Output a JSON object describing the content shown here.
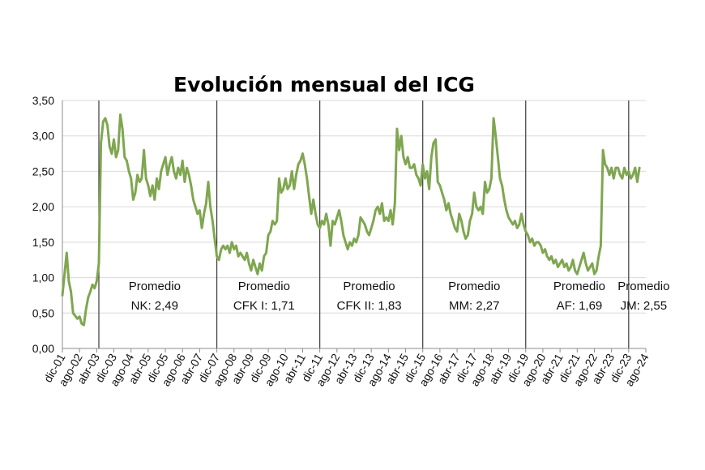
{
  "chart_data": {
    "type": "line",
    "title": "Evolución mensual del ICG",
    "xlabel": "",
    "ylabel": "",
    "ylim": [
      0,
      3.5
    ],
    "grid": "horizontal",
    "legend": "none",
    "y_ticks": [
      "0,00",
      "0,50",
      "1,00",
      "1,50",
      "2,00",
      "2,50",
      "3,00",
      "3,50"
    ],
    "x_ticks": [
      "dic-01",
      "ago-02",
      "abr-03",
      "dic-03",
      "ago-04",
      "abr-05",
      "dic-05",
      "ago-06",
      "abr-07",
      "dic-07",
      "ago-08",
      "abr-09",
      "dic-09",
      "ago-10",
      "abr-11",
      "dic-11",
      "ago-12",
      "abr-13",
      "dic-13",
      "ago-14",
      "abr-15",
      "dic-15",
      "ago-16",
      "abr-17",
      "dic-17",
      "ago-18",
      "abr-19",
      "dic-19",
      "ago-20",
      "abr-21",
      "dic-21",
      "ago-22",
      "abr-23",
      "dic-23",
      "ago-24"
    ],
    "line_color": "#7fa650",
    "series": [
      {
        "points": [
          [
            "2001-12",
            0.75
          ],
          [
            "2002-02",
            1.35
          ],
          [
            "2002-03",
            0.95
          ],
          [
            "2002-04",
            0.8
          ],
          [
            "2002-05",
            0.5
          ],
          [
            "2002-07",
            0.42
          ],
          [
            "2002-08",
            0.45
          ],
          [
            "2002-09",
            0.35
          ],
          [
            "2002-10",
            0.33
          ],
          [
            "2002-11",
            0.55
          ],
          [
            "2002-12",
            0.72
          ],
          [
            "2003-01",
            0.8
          ],
          [
            "2003-02",
            0.9
          ],
          [
            "2003-03",
            0.85
          ],
          [
            "2003-04",
            0.95
          ],
          [
            "2003-05",
            1.2
          ],
          [
            "2003-06",
            2.9
          ],
          [
            "2003-07",
            3.2
          ],
          [
            "2003-08",
            3.25
          ],
          [
            "2003-09",
            3.15
          ],
          [
            "2003-10",
            2.85
          ],
          [
            "2003-11",
            2.75
          ],
          [
            "2003-12",
            2.95
          ],
          [
            "2004-01",
            2.7
          ],
          [
            "2004-02",
            2.8
          ],
          [
            "2004-03",
            3.3
          ],
          [
            "2004-04",
            3.1
          ],
          [
            "2004-05",
            2.7
          ],
          [
            "2004-06",
            2.65
          ],
          [
            "2004-07",
            2.5
          ],
          [
            "2004-08",
            2.4
          ],
          [
            "2004-09",
            2.1
          ],
          [
            "2004-10",
            2.2
          ],
          [
            "2004-11",
            2.45
          ],
          [
            "2004-12",
            2.35
          ],
          [
            "2005-01",
            2.4
          ],
          [
            "2005-02",
            2.8
          ],
          [
            "2005-03",
            2.4
          ],
          [
            "2005-04",
            2.3
          ],
          [
            "2005-05",
            2.15
          ],
          [
            "2005-06",
            2.3
          ],
          [
            "2005-07",
            2.1
          ],
          [
            "2005-08",
            2.4
          ],
          [
            "2005-09",
            2.25
          ],
          [
            "2005-10",
            2.5
          ],
          [
            "2005-11",
            2.6
          ],
          [
            "2005-12",
            2.7
          ],
          [
            "2006-01",
            2.45
          ],
          [
            "2006-02",
            2.6
          ],
          [
            "2006-03",
            2.7
          ],
          [
            "2006-04",
            2.5
          ],
          [
            "2006-05",
            2.4
          ],
          [
            "2006-06",
            2.55
          ],
          [
            "2006-07",
            2.45
          ],
          [
            "2006-08",
            2.65
          ],
          [
            "2006-09",
            2.35
          ],
          [
            "2006-10",
            2.55
          ],
          [
            "2006-11",
            2.45
          ],
          [
            "2006-12",
            2.3
          ],
          [
            "2007-01",
            2.1
          ],
          [
            "2007-02",
            2.0
          ],
          [
            "2007-03",
            1.9
          ],
          [
            "2007-04",
            1.95
          ],
          [
            "2007-05",
            1.7
          ],
          [
            "2007-06",
            1.9
          ],
          [
            "2007-07",
            2.05
          ],
          [
            "2007-08",
            2.35
          ],
          [
            "2007-09",
            2.0
          ],
          [
            "2007-10",
            1.8
          ],
          [
            "2007-11",
            1.55
          ],
          [
            "2007-12",
            1.3
          ],
          [
            "2008-01",
            1.25
          ],
          [
            "2008-02",
            1.4
          ],
          [
            "2008-03",
            1.45
          ],
          [
            "2008-04",
            1.4
          ],
          [
            "2008-05",
            1.45
          ],
          [
            "2008-06",
            1.35
          ],
          [
            "2008-07",
            1.5
          ],
          [
            "2008-08",
            1.4
          ],
          [
            "2008-09",
            1.45
          ],
          [
            "2008-10",
            1.3
          ],
          [
            "2008-11",
            1.35
          ],
          [
            "2008-12",
            1.3
          ],
          [
            "2009-01",
            1.25
          ],
          [
            "2009-02",
            1.35
          ],
          [
            "2009-03",
            1.2
          ],
          [
            "2009-04",
            1.1
          ],
          [
            "2009-05",
            1.25
          ],
          [
            "2009-06",
            1.15
          ],
          [
            "2009-07",
            1.05
          ],
          [
            "2009-08",
            1.2
          ],
          [
            "2009-09",
            1.1
          ],
          [
            "2009-10",
            1.3
          ],
          [
            "2009-11",
            1.35
          ],
          [
            "2009-12",
            1.6
          ],
          [
            "2010-01",
            1.65
          ],
          [
            "2010-02",
            1.8
          ],
          [
            "2010-03",
            1.75
          ],
          [
            "2010-04",
            1.8
          ],
          [
            "2010-05",
            2.4
          ],
          [
            "2010-06",
            2.2
          ],
          [
            "2010-07",
            2.25
          ],
          [
            "2010-08",
            2.4
          ],
          [
            "2010-09",
            2.25
          ],
          [
            "2010-10",
            2.3
          ],
          [
            "2010-11",
            2.5
          ],
          [
            "2010-12",
            2.25
          ],
          [
            "2011-01",
            2.45
          ],
          [
            "2011-02",
            2.6
          ],
          [
            "2011-03",
            2.65
          ],
          [
            "2011-04",
            2.75
          ],
          [
            "2011-05",
            2.6
          ],
          [
            "2011-06",
            2.4
          ],
          [
            "2011-07",
            2.15
          ],
          [
            "2011-08",
            1.9
          ],
          [
            "2011-09",
            2.1
          ],
          [
            "2011-10",
            1.9
          ],
          [
            "2011-11",
            1.75
          ],
          [
            "2011-12",
            1.7
          ],
          [
            "2012-01",
            1.8
          ],
          [
            "2012-02",
            1.75
          ],
          [
            "2012-03",
            1.9
          ],
          [
            "2012-04",
            1.75
          ],
          [
            "2012-05",
            1.45
          ],
          [
            "2012-06",
            1.8
          ],
          [
            "2012-07",
            1.75
          ],
          [
            "2012-08",
            1.85
          ],
          [
            "2012-09",
            1.95
          ],
          [
            "2012-10",
            1.8
          ],
          [
            "2012-11",
            1.6
          ],
          [
            "2012-12",
            1.5
          ],
          [
            "2013-01",
            1.4
          ],
          [
            "2013-02",
            1.5
          ],
          [
            "2013-03",
            1.45
          ],
          [
            "2013-04",
            1.55
          ],
          [
            "2013-05",
            1.5
          ],
          [
            "2013-06",
            1.6
          ],
          [
            "2013-07",
            1.85
          ],
          [
            "2013-08",
            1.8
          ],
          [
            "2013-09",
            1.75
          ],
          [
            "2013-10",
            1.65
          ],
          [
            "2013-11",
            1.6
          ],
          [
            "2013-12",
            1.7
          ],
          [
            "2014-01",
            1.8
          ],
          [
            "2014-02",
            1.95
          ],
          [
            "2014-03",
            2.0
          ],
          [
            "2014-04",
            1.9
          ],
          [
            "2014-05",
            2.05
          ],
          [
            "2014-06",
            1.8
          ],
          [
            "2014-07",
            1.85
          ],
          [
            "2014-08",
            1.8
          ],
          [
            "2014-09",
            1.95
          ],
          [
            "2014-10",
            1.75
          ],
          [
            "2014-11",
            2.05
          ],
          [
            "2014-12",
            3.1
          ],
          [
            "2015-01",
            2.8
          ],
          [
            "2015-02",
            3.0
          ],
          [
            "2015-03",
            2.7
          ],
          [
            "2015-04",
            2.6
          ],
          [
            "2015-05",
            2.7
          ],
          [
            "2015-06",
            2.55
          ],
          [
            "2015-07",
            2.55
          ],
          [
            "2015-08",
            2.6
          ],
          [
            "2015-09",
            2.45
          ],
          [
            "2015-10",
            2.4
          ],
          [
            "2015-11",
            2.3
          ],
          [
            "2015-12",
            2.6
          ],
          [
            "2016-01",
            2.4
          ],
          [
            "2016-02",
            2.5
          ],
          [
            "2016-03",
            2.25
          ],
          [
            "2016-04",
            2.7
          ],
          [
            "2016-05",
            2.9
          ],
          [
            "2016-06",
            2.95
          ],
          [
            "2016-07",
            2.35
          ],
          [
            "2016-08",
            2.3
          ],
          [
            "2016-09",
            2.2
          ],
          [
            "2016-10",
            2.1
          ],
          [
            "2016-11",
            1.95
          ],
          [
            "2016-12",
            2.05
          ],
          [
            "2017-01",
            1.9
          ],
          [
            "2017-02",
            1.8
          ],
          [
            "2017-03",
            1.7
          ],
          [
            "2017-04",
            1.65
          ],
          [
            "2017-05",
            1.9
          ],
          [
            "2017-06",
            1.8
          ],
          [
            "2017-07",
            1.65
          ],
          [
            "2017-08",
            1.55
          ],
          [
            "2017-09",
            1.6
          ],
          [
            "2017-10",
            1.8
          ],
          [
            "2017-11",
            1.9
          ],
          [
            "2017-12",
            2.2
          ],
          [
            "2018-01",
            2.0
          ],
          [
            "2018-02",
            1.95
          ],
          [
            "2018-03",
            2.0
          ],
          [
            "2018-04",
            1.9
          ],
          [
            "2018-05",
            2.35
          ],
          [
            "2018-06",
            2.2
          ],
          [
            "2018-07",
            2.25
          ],
          [
            "2018-08",
            2.4
          ],
          [
            "2018-09",
            3.25
          ],
          [
            "2018-10",
            3.0
          ],
          [
            "2018-11",
            2.7
          ],
          [
            "2018-12",
            2.4
          ],
          [
            "2019-01",
            2.3
          ],
          [
            "2019-02",
            2.1
          ],
          [
            "2019-03",
            1.95
          ],
          [
            "2019-04",
            1.85
          ],
          [
            "2019-05",
            1.8
          ],
          [
            "2019-06",
            1.75
          ],
          [
            "2019-07",
            1.8
          ],
          [
            "2019-08",
            1.7
          ],
          [
            "2019-09",
            1.75
          ],
          [
            "2019-10",
            1.9
          ],
          [
            "2019-11",
            1.75
          ],
          [
            "2019-12",
            1.65
          ],
          [
            "2020-01",
            1.6
          ],
          [
            "2020-02",
            1.5
          ],
          [
            "2020-03",
            1.55
          ],
          [
            "2020-04",
            1.45
          ],
          [
            "2020-05",
            1.5
          ],
          [
            "2020-06",
            1.5
          ],
          [
            "2020-07",
            1.45
          ],
          [
            "2020-08",
            1.35
          ],
          [
            "2020-09",
            1.4
          ],
          [
            "2020-10",
            1.3
          ],
          [
            "2020-11",
            1.25
          ],
          [
            "2020-12",
            1.3
          ],
          [
            "2021-01",
            1.2
          ],
          [
            "2021-02",
            1.25
          ],
          [
            "2021-03",
            1.15
          ],
          [
            "2021-04",
            1.2
          ],
          [
            "2021-05",
            1.25
          ],
          [
            "2021-06",
            1.15
          ],
          [
            "2021-07",
            1.2
          ],
          [
            "2021-08",
            1.1
          ],
          [
            "2021-09",
            1.15
          ],
          [
            "2021-10",
            1.25
          ],
          [
            "2021-11",
            1.1
          ],
          [
            "2021-12",
            1.05
          ],
          [
            "2022-01",
            1.15
          ],
          [
            "2022-02",
            1.25
          ],
          [
            "2022-03",
            1.35
          ],
          [
            "2022-04",
            1.2
          ],
          [
            "2022-05",
            1.1
          ],
          [
            "2022-06",
            1.15
          ],
          [
            "2022-07",
            1.2
          ],
          [
            "2022-08",
            1.05
          ],
          [
            "2022-09",
            1.1
          ],
          [
            "2022-10",
            1.3
          ],
          [
            "2022-11",
            1.45
          ],
          [
            "2022-12",
            2.8
          ],
          [
            "2023-01",
            2.6
          ],
          [
            "2023-02",
            2.55
          ],
          [
            "2023-03",
            2.45
          ],
          [
            "2023-04",
            2.55
          ],
          [
            "2023-05",
            2.4
          ],
          [
            "2023-06",
            2.55
          ],
          [
            "2023-07",
            2.55
          ],
          [
            "2023-08",
            2.45
          ],
          [
            "2023-09",
            2.4
          ],
          [
            "2023-10",
            2.55
          ],
          [
            "2023-11",
            2.45
          ],
          [
            "2023-12",
            2.5
          ],
          [
            "2024-01",
            2.4
          ],
          [
            "2024-02",
            2.45
          ],
          [
            "2024-03",
            2.55
          ],
          [
            "2024-04",
            2.35
          ],
          [
            "2024-05",
            2.55
          ]
        ]
      }
    ],
    "dividers": [
      "2003-05",
      "2007-12",
      "2011-12",
      "2015-12",
      "2019-12",
      "2023-12"
    ],
    "annotations": [
      {
        "x": "2005-07",
        "lines": [
          "Promedio",
          "NK: 2,49"
        ]
      },
      {
        "x": "2009-10",
        "lines": [
          "Promedio",
          "CFK I: 1,71"
        ]
      },
      {
        "x": "2013-11",
        "lines": [
          "Promedio",
          "CFK II: 1,83"
        ]
      },
      {
        "x": "2017-12",
        "lines": [
          "Promedio",
          "MM: 2,27"
        ]
      },
      {
        "x": "2022-01",
        "lines": [
          "Promedio",
          "AF: 1,69"
        ]
      },
      {
        "x": "2024-07",
        "lines": [
          "Promedio",
          "JM: 2,55"
        ]
      }
    ]
  }
}
